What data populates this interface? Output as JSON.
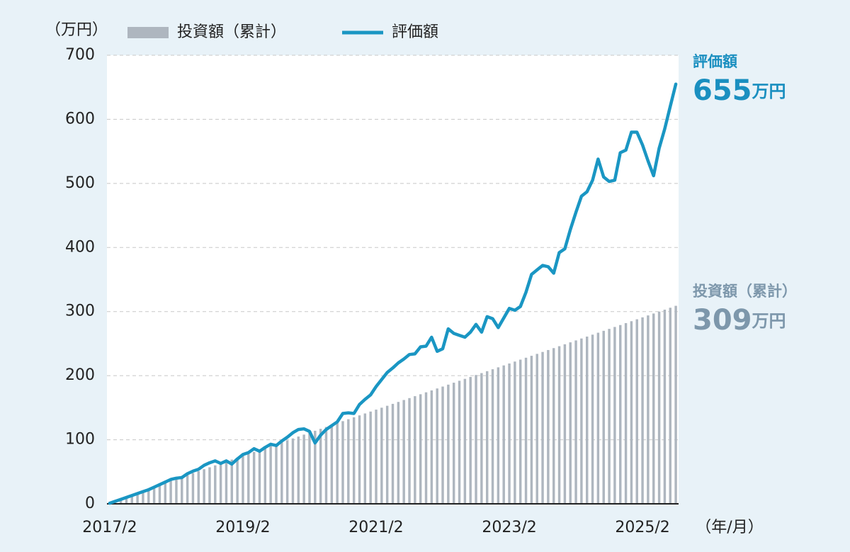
{
  "chart_data": {
    "type": "combo",
    "y_unit": "（万円）",
    "x_unit": "（年/月）",
    "categories": [
      "2017/2",
      null,
      null,
      null,
      null,
      null,
      null,
      null,
      null,
      null,
      null,
      null,
      null,
      null,
      null,
      null,
      null,
      null,
      null,
      null,
      null,
      null,
      null,
      null,
      "2019/2",
      null,
      null,
      null,
      null,
      null,
      null,
      null,
      null,
      null,
      null,
      null,
      null,
      null,
      null,
      null,
      null,
      null,
      null,
      null,
      null,
      null,
      null,
      null,
      "2021/2",
      null,
      null,
      null,
      null,
      null,
      null,
      null,
      null,
      null,
      null,
      null,
      null,
      null,
      null,
      null,
      null,
      null,
      null,
      null,
      null,
      null,
      null,
      null,
      "2023/2",
      null,
      null,
      null,
      null,
      null,
      null,
      null,
      null,
      null,
      null,
      null,
      null,
      null,
      null,
      null,
      null,
      null,
      null,
      null,
      null,
      null,
      null,
      null,
      "2025/2",
      null,
      null,
      null,
      null,
      null,
      null
    ],
    "series": [
      {
        "name": "投資額（累計）",
        "type": "bar",
        "color": "#aeb6bf",
        "label_color": "#7d97ab",
        "values": [
          3,
          6,
          9,
          12,
          15,
          18,
          21,
          24,
          27,
          30,
          33,
          36,
          39,
          42,
          45,
          48,
          51,
          54,
          57,
          60,
          63,
          66,
          69,
          72,
          75,
          78,
          81,
          84,
          87,
          90,
          93,
          96,
          99,
          102,
          105,
          108,
          111,
          114,
          117,
          120,
          123,
          126,
          129,
          132,
          135,
          138,
          141,
          144,
          147,
          150,
          153,
          156,
          159,
          162,
          165,
          168,
          171,
          174,
          177,
          180,
          183,
          186,
          189,
          192,
          195,
          198,
          201,
          204,
          207,
          210,
          213,
          216,
          219,
          222,
          225,
          228,
          231,
          234,
          237,
          240,
          243,
          246,
          249,
          252,
          255,
          258,
          261,
          264,
          267,
          270,
          273,
          276,
          279,
          282,
          285,
          288,
          291,
          294,
          297,
          300,
          303,
          306,
          309
        ]
      },
      {
        "name": "評価額",
        "type": "line",
        "color": "#1a96c3",
        "label_color": "#1a8fc0",
        "values": [
          1,
          4,
          7,
          10,
          13,
          16,
          19,
          22,
          26,
          30,
          34,
          38,
          40,
          41,
          47,
          51,
          54,
          60,
          64,
          67,
          63,
          67,
          62,
          70,
          77,
          80,
          86,
          82,
          88,
          93,
          91,
          98,
          104,
          111,
          116,
          117,
          113,
          95,
          107,
          116,
          122,
          128,
          141,
          142,
          141,
          155,
          163,
          170,
          183,
          194,
          205,
          212,
          220,
          226,
          233,
          234,
          245,
          246,
          260,
          238,
          242,
          273,
          266,
          263,
          260,
          268,
          280,
          268,
          292,
          289,
          275,
          290,
          305,
          302,
          308,
          330,
          358,
          365,
          372,
          370,
          360,
          392,
          398,
          428,
          455,
          480,
          487,
          505,
          538,
          510,
          503,
          505,
          548,
          552,
          580,
          580,
          560,
          535,
          512,
          555,
          585,
          620,
          655
        ]
      }
    ],
    "end_label_unit": "万円",
    "ylim": [
      0,
      700
    ],
    "yticks": [
      0,
      100,
      200,
      300,
      400,
      500,
      600,
      700
    ],
    "grid": true
  }
}
